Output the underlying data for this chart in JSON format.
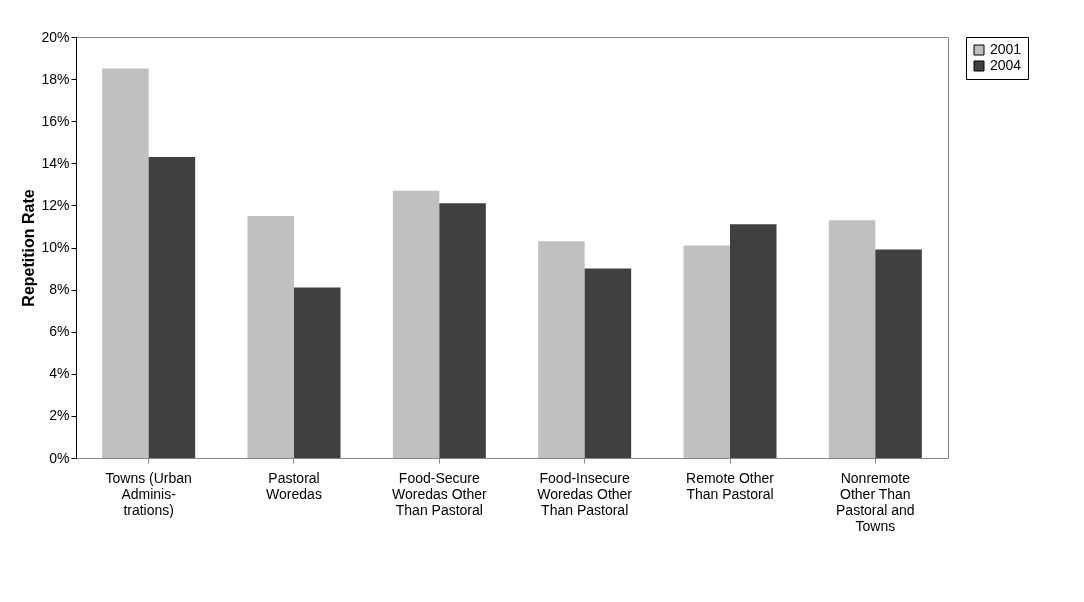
{
  "chart_data": {
    "type": "bar",
    "ylabel": "Repetition Rate",
    "categories": [
      "Towns (Urban\nAdminis-\ntrations)",
      "Pastoral\nWoredas",
      "Food-Secure\nWoredas Other\nThan Pastoral",
      "Food-Insecure\nWoredas Other\nThan Pastoral",
      "Remote Other\nThan Pastoral",
      "Nonremote\nOther Than\nPastoral and\nTowns"
    ],
    "series": [
      {
        "name": "2001",
        "color": "#c0c0c0",
        "values": [
          18.5,
          11.5,
          12.7,
          10.3,
          10.1,
          11.3
        ]
      },
      {
        "name": "2004",
        "color": "#404040",
        "values": [
          14.3,
          8.1,
          12.1,
          9.0,
          11.1,
          9.9
        ]
      }
    ],
    "ylim": [
      0,
      20
    ],
    "yticks": [
      {
        "value": 0,
        "label": "0%"
      },
      {
        "value": 2,
        "label": "2%"
      },
      {
        "value": 4,
        "label": "4%"
      },
      {
        "value": 6,
        "label": "6%"
      },
      {
        "value": 8,
        "label": "8%"
      },
      {
        "value": 10,
        "label": "10%"
      },
      {
        "value": 12,
        "label": "12%"
      },
      {
        "value": 14,
        "label": "14%"
      },
      {
        "value": 16,
        "label": "16%"
      },
      {
        "value": 18,
        "label": "18%"
      },
      {
        "value": 20,
        "label": "20%"
      }
    ],
    "grid": false,
    "legend": "right"
  }
}
